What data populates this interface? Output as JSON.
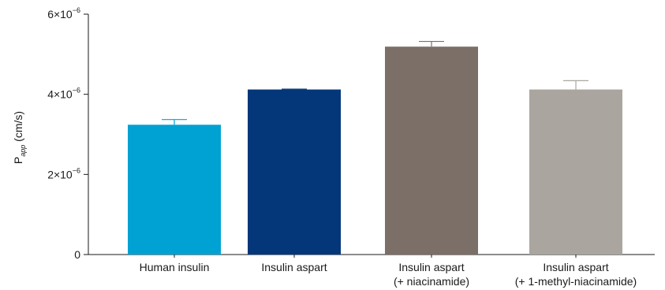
{
  "chart_data": {
    "type": "bar",
    "title": "",
    "ylabel_main": "P",
    "ylabel_sub": "app",
    "ylabel_unit": " (cm/s)",
    "xlabel": "",
    "ylim": [
      0,
      6e-06
    ],
    "yticks": [
      {
        "value": 0,
        "label": "0",
        "exp": ""
      },
      {
        "value": 2e-06,
        "label": "2×10",
        "exp": "−6"
      },
      {
        "value": 4e-06,
        "label": "4×10",
        "exp": "−6"
      },
      {
        "value": 6e-06,
        "label": "6×10",
        "exp": "−6"
      }
    ],
    "categories": [
      [
        "Human insulin"
      ],
      [
        "Insulin aspart"
      ],
      [
        "Insulin aspart",
        "(+ niacinamide)"
      ],
      [
        "Insulin aspart",
        "(+ 1-methyl-niacinamide)"
      ]
    ],
    "values": [
      3.24e-06,
      4.12e-06,
      5.19e-06,
      4.12e-06
    ],
    "errors": [
      1.3e-07,
      1e-08,
      1.3e-07,
      2.2e-07
    ],
    "colors": [
      "#00a2d3",
      "#03377a",
      "#7b6f67",
      "#aaa59f"
    ],
    "grid": false,
    "legend": "none"
  }
}
